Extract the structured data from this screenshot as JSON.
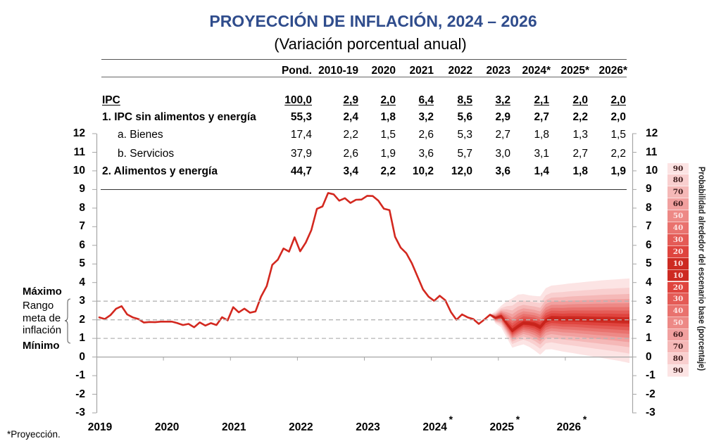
{
  "header": {
    "title": "PROYECCIÓN DE INFLACIÓN, 2024 – 2026",
    "subtitle": "(Variación porcentual anual)"
  },
  "table": {
    "columns": [
      "",
      "Pond.",
      "2010-19",
      "2020",
      "2021",
      "2022",
      "2023",
      "2024*",
      "2025*",
      "2026*"
    ],
    "rows": [
      {
        "label": "IPC",
        "values": [
          "100,0",
          "2,9",
          "2,0",
          "6,4",
          "8,5",
          "3,2",
          "2,1",
          "2,0",
          "2,0"
        ]
      },
      {
        "label": "1. IPC sin alimentos y energía",
        "values": [
          "55,3",
          "2,4",
          "1,8",
          "3,2",
          "5,6",
          "2,9",
          "2,7",
          "2,2",
          "2,0"
        ]
      },
      {
        "label": "a. Bienes",
        "values": [
          "17,4",
          "2,2",
          "1,5",
          "2,6",
          "5,3",
          "2,7",
          "1,8",
          "1,3",
          "1,5"
        ]
      },
      {
        "label": "b. Servicios",
        "values": [
          "37,9",
          "2,6",
          "1,9",
          "3,6",
          "5,7",
          "3,0",
          "3,1",
          "2,7",
          "2,2"
        ]
      },
      {
        "label": "2. Alimentos y energía",
        "values": [
          "44,7",
          "3,4",
          "2,2",
          "10,2",
          "12,0",
          "3,6",
          "1,4",
          "1,8",
          "1,9"
        ]
      }
    ]
  },
  "target_range": {
    "max_label": "Máximo",
    "range_label_lines": [
      "Rango",
      "meta de",
      "inflación"
    ],
    "min_label": "Mínimo"
  },
  "footnote": "*Proyección.",
  "chart_data": {
    "type": "line",
    "title": "PROYECCIÓN DE INFLACIÓN, 2024 – 2026",
    "subtitle": "(Variación porcentual anual)",
    "xlabel": "",
    "ylabel": "",
    "xlim": [
      "2019-01",
      "2026-12"
    ],
    "ylim": [
      -3,
      12
    ],
    "grid": false,
    "y_ticks": [
      12,
      11,
      10,
      9,
      8,
      7,
      6,
      5,
      4,
      3,
      2,
      1,
      0,
      -1,
      -2,
      -3
    ],
    "x_ticks": [
      {
        "label": "2019",
        "projected": false
      },
      {
        "label": "2020",
        "projected": false
      },
      {
        "label": "2021",
        "projected": false
      },
      {
        "label": "2022",
        "projected": false
      },
      {
        "label": "2023",
        "projected": false
      },
      {
        "label": "2024",
        "projected": true
      },
      {
        "label": "2025",
        "projected": true
      },
      {
        "label": "2026",
        "projected": true
      }
    ],
    "projection_marker": "*",
    "line_color": "#d3281f",
    "projection_line_color": "#c8231b",
    "reference_lines": [
      {
        "value": 3,
        "style": "dashed"
      },
      {
        "value": 2,
        "style": "dashed"
      },
      {
        "value": 1,
        "style": "dashed"
      }
    ],
    "observed": {
      "start": "2019-01",
      "end": "2024-11",
      "values": [
        2.13,
        2.04,
        2.25,
        2.59,
        2.73,
        2.29,
        2.13,
        2.04,
        1.85,
        1.88,
        1.87,
        1.9,
        1.9,
        1.9,
        1.82,
        1.72,
        1.78,
        1.6,
        1.86,
        1.69,
        1.82,
        1.72,
        2.14,
        1.97,
        2.68,
        2.4,
        2.6,
        2.38,
        2.45,
        3.25,
        3.81,
        4.95,
        5.23,
        5.83,
        5.66,
        6.43,
        5.68,
        6.15,
        6.82,
        7.96,
        8.09,
        8.81,
        8.74,
        8.4,
        8.53,
        8.28,
        8.45,
        8.46,
        8.66,
        8.65,
        8.4,
        7.97,
        7.89,
        6.46,
        5.88,
        5.58,
        5.04,
        4.34,
        3.64,
        3.24,
        3.02,
        3.29,
        3.05,
        2.42,
        2.0,
        2.29,
        2.13,
        2.04,
        1.78,
        2.01,
        2.27
      ]
    },
    "projection": {
      "start": "2024-11",
      "end": "2026-12",
      "center": [
        2.27,
        2.1,
        2.2,
        1.8,
        1.4,
        1.62,
        1.82,
        1.8,
        1.75,
        1.6,
        1.95,
        2.08,
        2.07,
        2.04,
        2.05,
        2.05,
        2.04,
        2.03,
        2.02,
        2.01,
        2.0,
        2.0,
        1.99,
        1.98,
        1.97,
        1.97
      ],
      "upper_90": [
        2.27,
        2.45,
        2.75,
        3.0,
        3.15,
        3.35,
        3.38,
        3.32,
        3.28,
        3.26,
        3.7,
        3.84,
        3.87,
        3.9,
        3.94,
        3.97,
        4.0,
        4.03,
        4.06,
        4.09,
        4.12,
        4.14,
        4.16,
        4.18,
        4.2,
        4.22
      ],
      "lower_90": [
        2.27,
        1.8,
        1.6,
        1.05,
        0.5,
        0.6,
        0.68,
        0.55,
        0.35,
        0.12,
        0.4,
        0.42,
        0.36,
        0.3,
        0.25,
        0.2,
        0.15,
        0.1,
        0.05,
        0.0,
        -0.05,
        -0.1,
        -0.15,
        -0.2,
        -0.26,
        -0.32
      ]
    },
    "legend": {
      "title": "Probabilidad alrededor del escenario base (porcentaje)",
      "position": "right",
      "bands": [
        {
          "probability": 90,
          "label": "90",
          "color": "#fce4e4",
          "text_color": "#3d1a1a"
        },
        {
          "probability": 80,
          "label": "80",
          "color": "#f9cfcf",
          "text_color": "#3d1a1a"
        },
        {
          "probability": 70,
          "label": "70",
          "color": "#f5b8b7",
          "text_color": "#3d1a1a"
        },
        {
          "probability": 60,
          "label": "60",
          "color": "#f1a09f",
          "text_color": "#3d1a1a"
        },
        {
          "probability": 50,
          "label": "50",
          "color": "#ed8986",
          "text_color": "#fde2e2"
        },
        {
          "probability": 40,
          "label": "40",
          "color": "#e9726e",
          "text_color": "#fde2e2"
        },
        {
          "probability": 30,
          "label": "30",
          "color": "#e45b56",
          "text_color": "#fde2e2"
        },
        {
          "probability": 20,
          "label": "20",
          "color": "#df443e",
          "text_color": "#fde2e2"
        },
        {
          "probability": 10,
          "label": "10",
          "color": "#cd2a22",
          "text_color": "#fde2e2"
        },
        {
          "probability": 10,
          "label": "10",
          "color": "#cd2a22",
          "text_color": "#fde2e2"
        },
        {
          "probability": 20,
          "label": "20",
          "color": "#df443e",
          "text_color": "#fde2e2"
        },
        {
          "probability": 30,
          "label": "30",
          "color": "#e45b56",
          "text_color": "#fde2e2"
        },
        {
          "probability": 40,
          "label": "40",
          "color": "#e9726e",
          "text_color": "#fde2e2"
        },
        {
          "probability": 50,
          "label": "50",
          "color": "#ed8986",
          "text_color": "#fde2e2"
        },
        {
          "probability": 60,
          "label": "60",
          "color": "#f1a09f",
          "text_color": "#3d1a1a"
        },
        {
          "probability": 70,
          "label": "70",
          "color": "#f5b8b7",
          "text_color": "#3d1a1a"
        },
        {
          "probability": 80,
          "label": "80",
          "color": "#f9cfcf",
          "text_color": "#3d1a1a"
        },
        {
          "probability": 90,
          "label": "90",
          "color": "#fce4e4",
          "text_color": "#3d1a1a"
        }
      ]
    }
  }
}
